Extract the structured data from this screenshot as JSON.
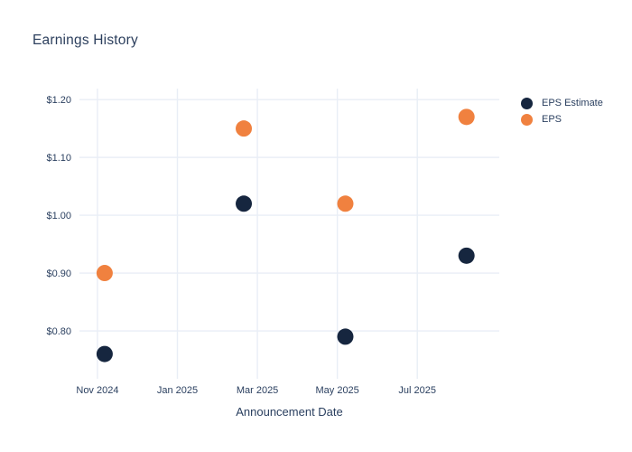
{
  "chart": {
    "title": "Earnings History",
    "x_axis_title": "Announcement Date"
  },
  "legend": {
    "items": [
      {
        "label": "EPS Estimate",
        "color": "#16263f"
      },
      {
        "label": "EPS",
        "color": "#f0813f"
      }
    ]
  },
  "chart_data": {
    "type": "scatter",
    "title": "Earnings History",
    "xlabel": "Announcement Date",
    "ylabel": "",
    "grid": true,
    "legend_position": "outside-top-right",
    "x_unit": "months since Nov 1, 2024",
    "x_range": [
      -0.45,
      10.05
    ],
    "y_range": [
      0.725,
      1.219
    ],
    "x_ticks": [
      {
        "m": 0,
        "label": "Nov 2024"
      },
      {
        "m": 2,
        "label": "Jan 2025"
      },
      {
        "m": 4,
        "label": "Mar 2025"
      },
      {
        "m": 6,
        "label": "May 2025"
      },
      {
        "m": 8,
        "label": "Jul 2025"
      }
    ],
    "y_ticks": [
      {
        "v": 1.2,
        "label": "$1.20"
      },
      {
        "v": 1.1,
        "label": "$1.10"
      },
      {
        "v": 1.0,
        "label": "$1.00"
      },
      {
        "v": 0.9,
        "label": "$0.90"
      },
      {
        "v": 0.8,
        "label": "$0.80"
      }
    ],
    "marker": {
      "shape": "circle",
      "radius_px": 9
    },
    "colors": {
      "grid": "#e9eef6",
      "text": "#2a3f5f",
      "background": "#ffffff"
    },
    "series": [
      {
        "name": "EPS Estimate",
        "color": "#16263f",
        "points": [
          {
            "x_m": 0.18,
            "approx_date": "2024-11-06",
            "value": 0.76
          },
          {
            "x_m": 3.66,
            "approx_date": "2025-02-20",
            "value": 1.02
          },
          {
            "x_m": 6.2,
            "approx_date": "2025-05-07",
            "value": 0.79
          },
          {
            "x_m": 9.23,
            "approx_date": "2025-08-08",
            "value": 0.93
          }
        ]
      },
      {
        "name": "EPS",
        "color": "#f0813f",
        "points": [
          {
            "x_m": 0.18,
            "approx_date": "2024-11-06",
            "value": 0.9
          },
          {
            "x_m": 3.66,
            "approx_date": "2025-02-20",
            "value": 1.15
          },
          {
            "x_m": 6.2,
            "approx_date": "2025-05-07",
            "value": 1.02
          },
          {
            "x_m": 9.23,
            "approx_date": "2025-08-08",
            "value": 1.17
          }
        ]
      }
    ]
  }
}
